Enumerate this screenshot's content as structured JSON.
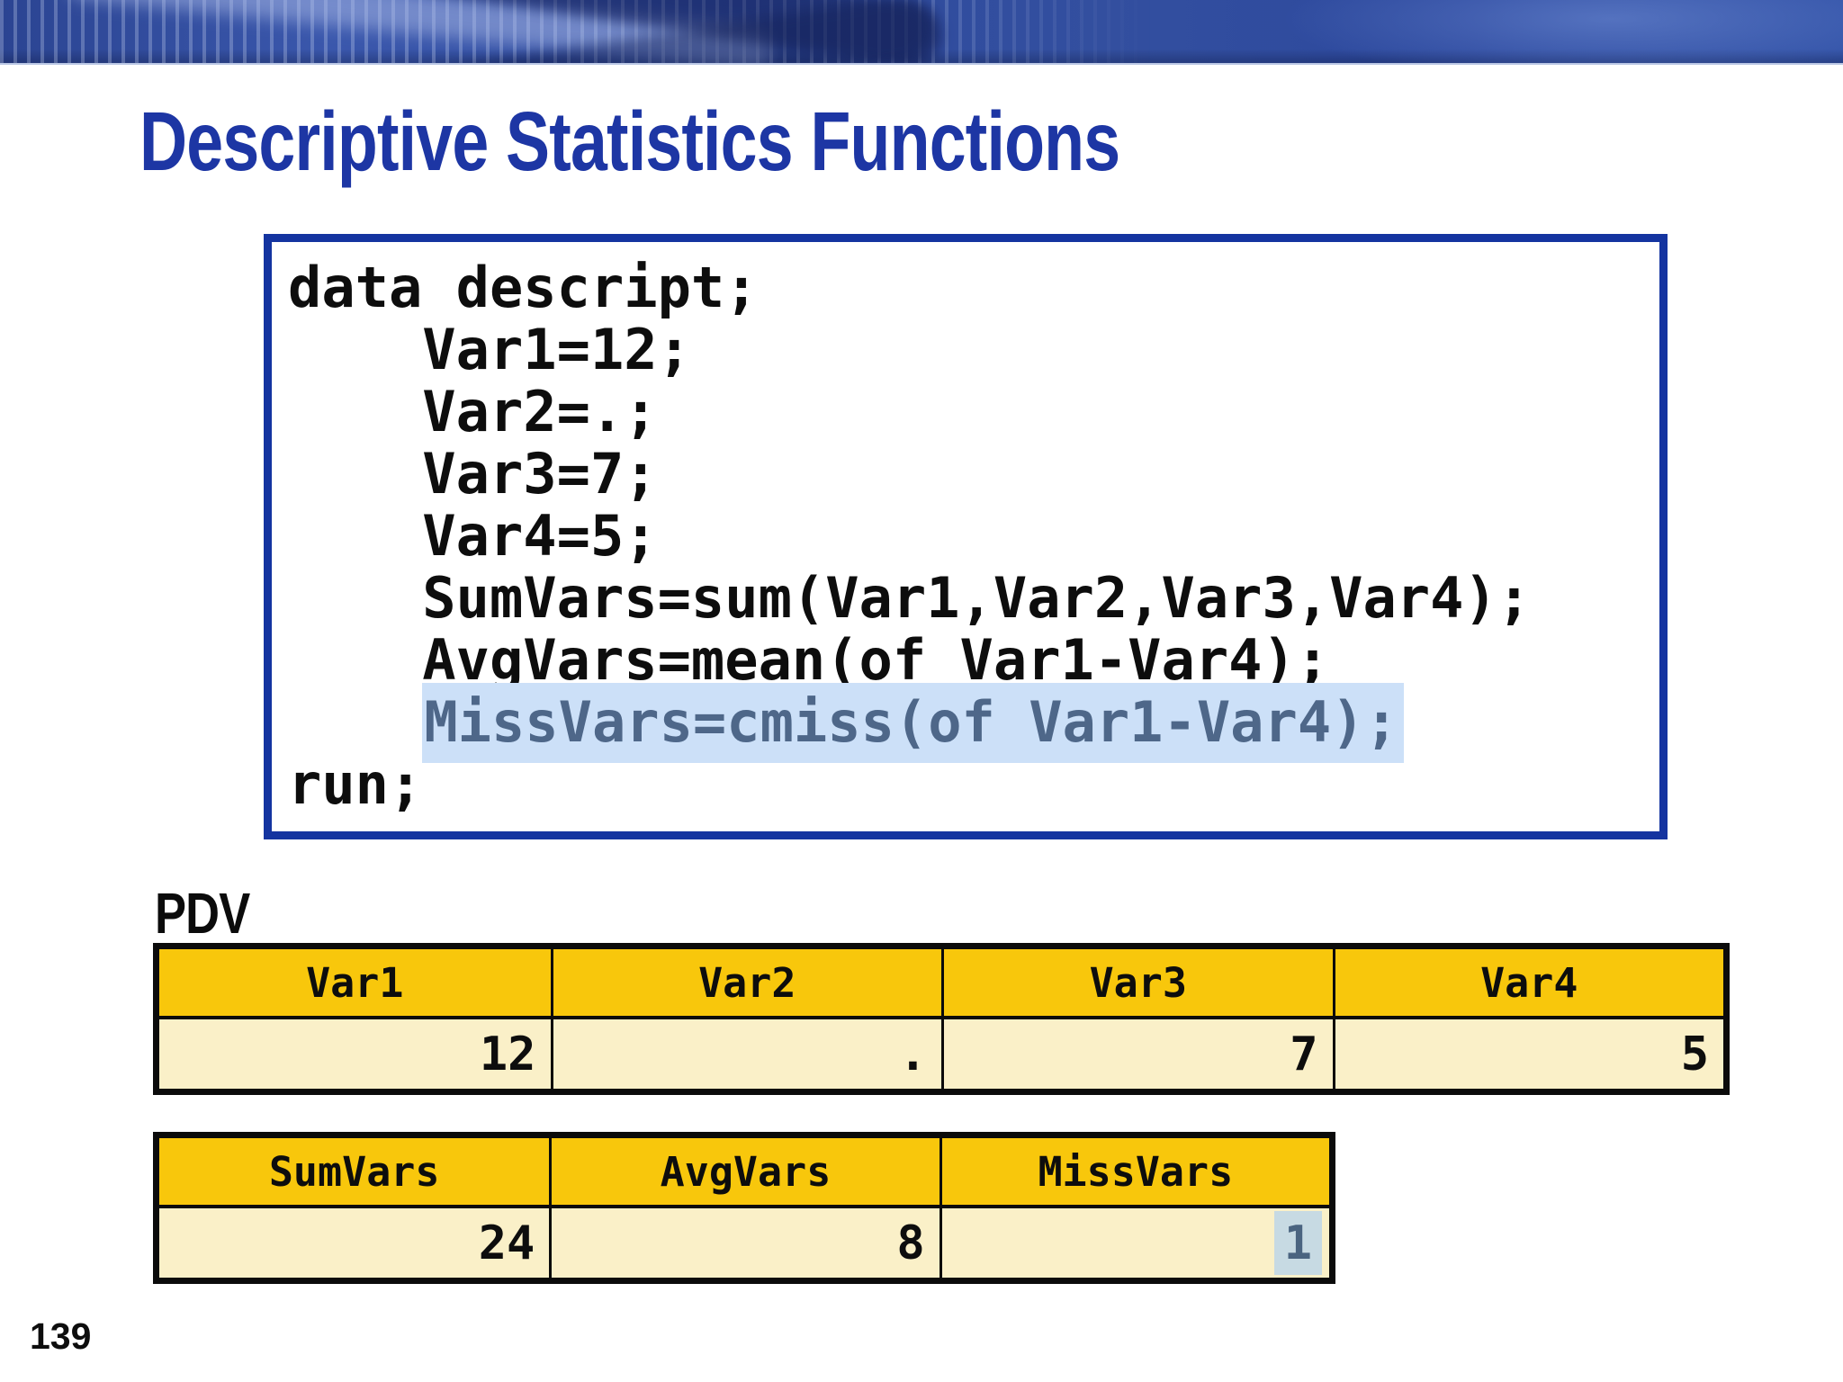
{
  "slide": {
    "title": "Descriptive Statistics Functions",
    "page_number": "139"
  },
  "code": {
    "lines": [
      {
        "text": "data descript;"
      },
      {
        "text": "    Var1=12;"
      },
      {
        "text": "    Var2=.;"
      },
      {
        "text": "    Var3=7;"
      },
      {
        "text": "    Var4=5;"
      },
      {
        "text": "    SumVars=sum(Var1,Var2,Var3,Var4);"
      },
      {
        "text": "    AvgVars=mean(of Var1-Var4);"
      },
      {
        "indent": "    ",
        "text": "MissVars=cmiss(of Var1-Var4);",
        "highlighted": true
      },
      {
        "text": "run;"
      }
    ]
  },
  "pdv": {
    "label": "PDV",
    "table1": {
      "headers": [
        "Var1",
        "Var2",
        "Var3",
        "Var4"
      ],
      "values": [
        "12",
        ".",
        "7",
        "5"
      ]
    },
    "table2": {
      "headers": [
        "SumVars",
        "AvgVars",
        "MissVars"
      ],
      "values": [
        "24",
        "8",
        "1"
      ],
      "highlighted_value": "1"
    }
  },
  "colors": {
    "title_blue": "#1d36a4",
    "code_box_border": "#1434a0",
    "code_highlight_bg": "#cce0f8",
    "code_highlight_text": "#4e6789",
    "table_header_gold": "#f8c70c",
    "table_body_cream": "#faf0c8",
    "missvars_highlight_bg": "#c7dae3",
    "missvars_highlight_text": "#4a6480"
  }
}
